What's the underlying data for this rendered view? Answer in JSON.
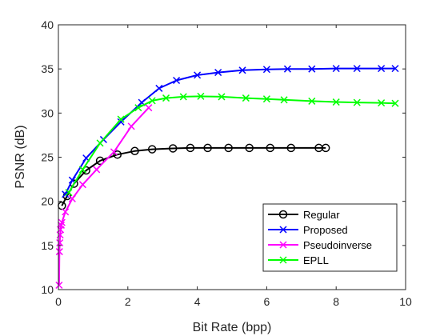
{
  "chart_data": {
    "type": "line",
    "title": "",
    "xlabel": "Bit Rate (bpp)",
    "ylabel": "PSNR (dB)",
    "xlim": [
      0,
      10
    ],
    "ylim": [
      10,
      40
    ],
    "xticks": [
      "0",
      "2",
      "4",
      "6",
      "8",
      "10"
    ],
    "yticks": [
      "10",
      "15",
      "20",
      "25",
      "30",
      "35",
      "40"
    ],
    "grid": false,
    "legend_position": "bottom-right",
    "series": [
      {
        "name": "Regular",
        "color": "#000000",
        "marker": "circle",
        "points": [
          [
            0.1,
            19.5
          ],
          [
            0.25,
            20.6
          ],
          [
            0.45,
            22.0
          ],
          [
            0.8,
            23.5
          ],
          [
            1.2,
            24.6
          ],
          [
            1.7,
            25.3
          ],
          [
            2.2,
            25.7
          ],
          [
            2.7,
            25.9
          ],
          [
            3.3,
            26.0
          ],
          [
            3.8,
            26.05
          ],
          [
            4.3,
            26.05
          ],
          [
            4.9,
            26.05
          ],
          [
            5.5,
            26.05
          ],
          [
            6.1,
            26.05
          ],
          [
            6.7,
            26.05
          ],
          [
            7.5,
            26.05
          ],
          [
            7.7,
            26.05
          ]
        ]
      },
      {
        "name": "Proposed",
        "color": "#0000ff",
        "marker": "x",
        "points": [
          [
            0.2,
            20.8
          ],
          [
            0.4,
            22.4
          ],
          [
            0.8,
            24.9
          ],
          [
            1.3,
            27.0
          ],
          [
            1.8,
            29.0
          ],
          [
            2.4,
            31.2
          ],
          [
            2.9,
            32.8
          ],
          [
            3.4,
            33.7
          ],
          [
            4.0,
            34.3
          ],
          [
            4.6,
            34.6
          ],
          [
            5.3,
            34.85
          ],
          [
            6.0,
            34.95
          ],
          [
            6.6,
            35.0
          ],
          [
            7.3,
            35.0
          ],
          [
            8.0,
            35.05
          ],
          [
            8.6,
            35.05
          ],
          [
            9.3,
            35.05
          ],
          [
            9.7,
            35.05
          ]
        ]
      },
      {
        "name": "Pseudoinverse",
        "color": "#ff00ff",
        "marker": "x",
        "points": [
          [
            0.02,
            10.5
          ],
          [
            0.03,
            14.3
          ],
          [
            0.04,
            15.3
          ],
          [
            0.05,
            16.2
          ],
          [
            0.06,
            16.8
          ],
          [
            0.08,
            17.3
          ],
          [
            0.1,
            17.6
          ],
          [
            0.2,
            18.8
          ],
          [
            0.4,
            20.3
          ],
          [
            0.7,
            21.9
          ],
          [
            1.1,
            23.6
          ],
          [
            1.6,
            25.6
          ],
          [
            2.1,
            28.5
          ],
          [
            2.6,
            30.6
          ]
        ]
      },
      {
        "name": "EPLL",
        "color": "#00ff00",
        "marker": "x",
        "points": [
          [
            0.3,
            21.0
          ],
          [
            0.7,
            23.6
          ],
          [
            1.2,
            26.6
          ],
          [
            1.8,
            29.3
          ],
          [
            2.3,
            30.6
          ],
          [
            2.7,
            31.4
          ],
          [
            3.1,
            31.7
          ],
          [
            3.6,
            31.85
          ],
          [
            4.1,
            31.9
          ],
          [
            4.7,
            31.85
          ],
          [
            5.4,
            31.7
          ],
          [
            6.0,
            31.6
          ],
          [
            6.5,
            31.5
          ],
          [
            7.3,
            31.35
          ],
          [
            8.0,
            31.25
          ],
          [
            8.6,
            31.2
          ],
          [
            9.3,
            31.15
          ],
          [
            9.7,
            31.1
          ]
        ]
      }
    ]
  }
}
